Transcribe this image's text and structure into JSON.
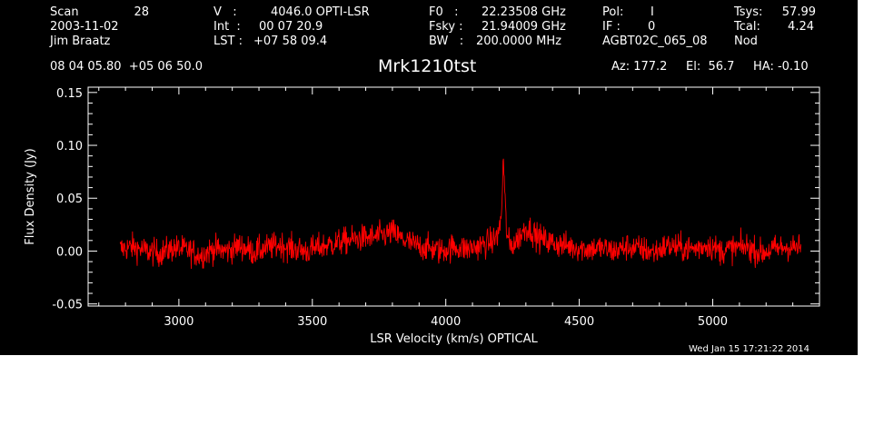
{
  "header": {
    "col1": {
      "scan_label": "Scan",
      "scan_value": "28",
      "date": "2003-11-02",
      "observer": "Jim Braatz"
    },
    "col2": {
      "v_label": "V   :",
      "v_value": "4046.0 OPTI-LSR",
      "int_label": "Int  :",
      "int_value": "00 07 20.9",
      "lst_label": "LST :",
      "lst_value": "+07 58 09.4"
    },
    "col3": {
      "f0_label": "F0   :",
      "f0_value": "22.23508 GHz",
      "fsky_label": "Fsky :",
      "fsky_value": "21.94009 GHz",
      "bw_label": "BW   :",
      "bw_value": "200.0000 MHz"
    },
    "col4": {
      "pol_label": "Pol:",
      "pol_value": "I",
      "if_label": "IF :",
      "if_value": "0",
      "project": "AGBT02C_065_08"
    },
    "col5": {
      "tsys_label": "Tsys:",
      "tsys_value": "57.99",
      "tcal_label": "Tcal:",
      "tcal_value": "4.24",
      "mode": "Nod"
    },
    "coords": "08 04 05.80  +05 06 50.0",
    "source": "Mrk1210tst",
    "az": "Az: 177.2",
    "el": "El:  56.7",
    "ha": "HA: -0.10"
  },
  "footer": {
    "timestamp": "Wed Jan 15 17:21:22 2014"
  },
  "colors": {
    "background": "#000000",
    "trace": "#ff0000",
    "axes": "#ffffff"
  },
  "chart_data": {
    "type": "line",
    "title": "Mrk1210tst",
    "xlabel": "LSR Velocity (km/s) OPTICAL",
    "ylabel": "Flux Density (Jy)",
    "xlim": [
      2660,
      5400
    ],
    "ylim": [
      -0.052,
      0.155
    ],
    "xticks": [
      3000,
      3500,
      4000,
      4500,
      5000
    ],
    "xtick_labels": [
      "3000",
      "3500",
      "4000",
      "4500",
      "5000"
    ],
    "yticks": [
      -0.05,
      0.0,
      0.05,
      0.1,
      0.15
    ],
    "ytick_labels": [
      "-0.05",
      "0.00",
      "0.05",
      "0.10",
      "0.15"
    ],
    "grid": false,
    "series": [
      {
        "x": [
          2780,
          2830,
          2880,
          2930,
          2980,
          3030,
          3080,
          3130,
          3180,
          3230,
          3280,
          3330,
          3380,
          3430,
          3480,
          3530,
          3580,
          3630,
          3680,
          3730,
          3780,
          3800,
          3830,
          3880,
          3930,
          3980,
          4030,
          4080,
          4130,
          4180,
          4200,
          4210,
          4215,
          4220,
          4225,
          4230,
          4240,
          4260,
          4280,
          4300,
          4320,
          4340,
          4380,
          4430,
          4480,
          4530,
          4580,
          4630,
          4680,
          4730,
          4780,
          4830,
          4880,
          4930,
          4980,
          5030,
          5080,
          5130,
          5180,
          5230,
          5280,
          5330
        ],
        "y": [
          0.002,
          0.004,
          0.0,
          -0.002,
          0.003,
          0.001,
          -0.004,
          0.002,
          0.0,
          0.005,
          -0.001,
          0.003,
          0.006,
          0.002,
          0.0,
          0.004,
          0.007,
          0.01,
          0.012,
          0.013,
          0.016,
          0.018,
          0.012,
          0.006,
          0.003,
          0.0,
          0.004,
          0.002,
          0.005,
          0.01,
          0.018,
          0.04,
          0.09,
          0.06,
          0.03,
          0.015,
          0.005,
          0.008,
          0.015,
          0.022,
          0.02,
          0.014,
          0.009,
          0.006,
          0.004,
          0.002,
          0.003,
          0.0,
          0.004,
          0.002,
          -0.001,
          0.005,
          0.003,
          0.002,
          0.006,
          0.0,
          0.003,
          0.004,
          -0.002,
          0.002,
          0.004,
          0.003
        ]
      }
    ]
  }
}
